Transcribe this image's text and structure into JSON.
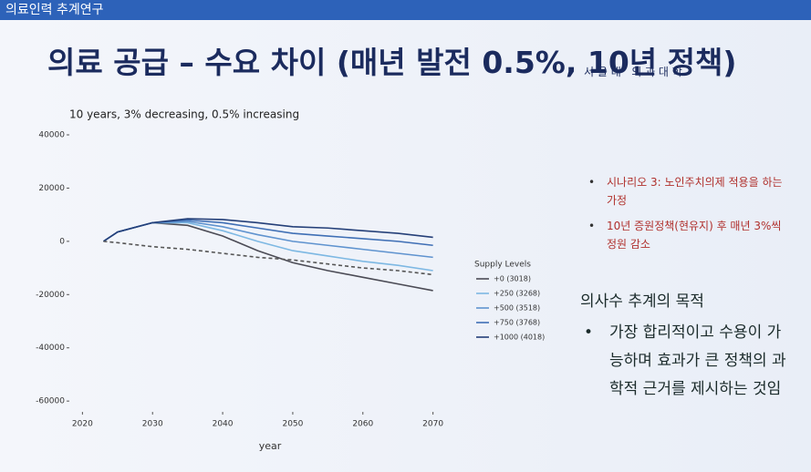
{
  "header": "의료인력 추계연구",
  "title": "의료 공급 – 수요 차이 (매년 발전 0.5%, 10년 정책)",
  "logo": "서 울 대   의 과 대 학",
  "notes": [
    "시나리오 3: 노인주치의제 적용을 하는 가정",
    "10년 증원정책(현유지) 후 매년 3%씩 정원 감소"
  ],
  "purpose": {
    "heading": "의사수 추계의 목적",
    "text": "가장 합리적이고 수용이 가능하며 효과가 큰 정책의 과학적 근거를 제시하는 것임"
  },
  "chart_data": {
    "type": "line",
    "subtitle": "10 years, 3% decreasing, 0.5% increasing",
    "x_label": "year",
    "legend_title": "Supply Levels",
    "x": [
      2023,
      2025,
      2030,
      2035,
      2040,
      2045,
      2050,
      2055,
      2060,
      2065,
      2070
    ],
    "series": [
      {
        "name": "+0 (3018)",
        "color": "#4b4b55",
        "values": [
          0,
          3500,
          7000,
          6000,
          2000,
          -3500,
          -8000,
          -11000,
          -13500,
          -16000,
          -18500
        ]
      },
      {
        "name": "+250 (3268)",
        "color": "#7db8e3",
        "values": [
          0,
          3500,
          7000,
          7000,
          4000,
          0,
          -3500,
          -5500,
          -7500,
          -9000,
          -11000
        ]
      },
      {
        "name": "+500 (3518)",
        "color": "#5f93cf",
        "values": [
          0,
          3500,
          7000,
          7500,
          5500,
          2500,
          0,
          -1500,
          -3000,
          -4500,
          -6000
        ]
      },
      {
        "name": "+750 (3768)",
        "color": "#3f6fb5",
        "values": [
          0,
          3500,
          7000,
          8000,
          7000,
          5000,
          3000,
          2000,
          1000,
          0,
          -1500
        ]
      },
      {
        "name": "+1000 (4018)",
        "color": "#243f78",
        "values": [
          0,
          3500,
          7000,
          8500,
          8200,
          7000,
          5500,
          5000,
          4000,
          3000,
          1500
        ]
      },
      {
        "color": "#555555",
        "dashed": true,
        "values": [
          0,
          -500,
          -2000,
          -3000,
          -4500,
          -6000,
          -7000,
          -8500,
          -10000,
          -11000,
          -12500
        ]
      }
    ],
    "xlim": [
      2018,
      2072
    ],
    "ylim": [
      -62000,
      40000
    ],
    "xticks": [
      2020,
      2030,
      2040,
      2050,
      2060,
      2070
    ],
    "yticks": [
      40000,
      20000,
      0,
      -20000,
      -40000,
      -60000
    ]
  }
}
